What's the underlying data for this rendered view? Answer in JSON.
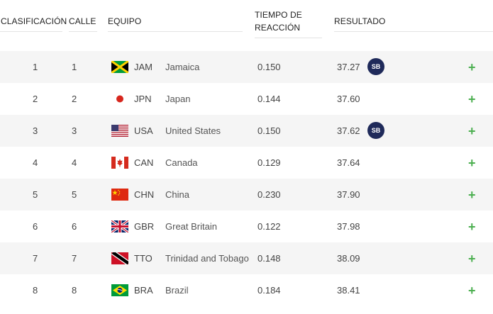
{
  "columns": {
    "rank": "CLASIFICACIÓN",
    "lane": "CALLE",
    "team": "EQUIPO",
    "reaction_line1": "TIEMPO DE",
    "reaction_line2": "REACCIÓN",
    "result": "RESULTADO"
  },
  "rows": [
    {
      "rank": "1",
      "lane": "1",
      "code": "JAM",
      "name": "Jamaica",
      "reaction": "0.150",
      "result": "37.27",
      "badge": "SB",
      "flag": "jamaica-flag-icon"
    },
    {
      "rank": "2",
      "lane": "2",
      "code": "JPN",
      "name": "Japan",
      "reaction": "0.144",
      "result": "37.60",
      "badge": "",
      "flag": "japan-flag-icon"
    },
    {
      "rank": "3",
      "lane": "3",
      "code": "USA",
      "name": "United States",
      "reaction": "0.150",
      "result": "37.62",
      "badge": "SB",
      "flag": "usa-flag-icon"
    },
    {
      "rank": "4",
      "lane": "4",
      "code": "CAN",
      "name": "Canada",
      "reaction": "0.129",
      "result": "37.64",
      "badge": "",
      "flag": "canada-flag-icon"
    },
    {
      "rank": "5",
      "lane": "5",
      "code": "CHN",
      "name": "China",
      "reaction": "0.230",
      "result": "37.90",
      "badge": "",
      "flag": "china-flag-icon"
    },
    {
      "rank": "6",
      "lane": "6",
      "code": "GBR",
      "name": "Great Britain",
      "reaction": "0.122",
      "result": "37.98",
      "badge": "",
      "flag": "great-britain-flag-icon"
    },
    {
      "rank": "7",
      "lane": "7",
      "code": "TTO",
      "name": "Trinidad and Tobago",
      "reaction": "0.148",
      "result": "38.09",
      "badge": "",
      "flag": "trinidad-tobago-flag-icon"
    },
    {
      "rank": "8",
      "lane": "8",
      "code": "BRA",
      "name": "Brazil",
      "reaction": "0.184",
      "result": "38.41",
      "badge": "",
      "flag": "brazil-flag-icon"
    }
  ],
  "expand_symbol": "+",
  "colors": {
    "badge": "#1f2a5a",
    "expand": "#4caf50",
    "row_alt": "#f5f5f5"
  }
}
